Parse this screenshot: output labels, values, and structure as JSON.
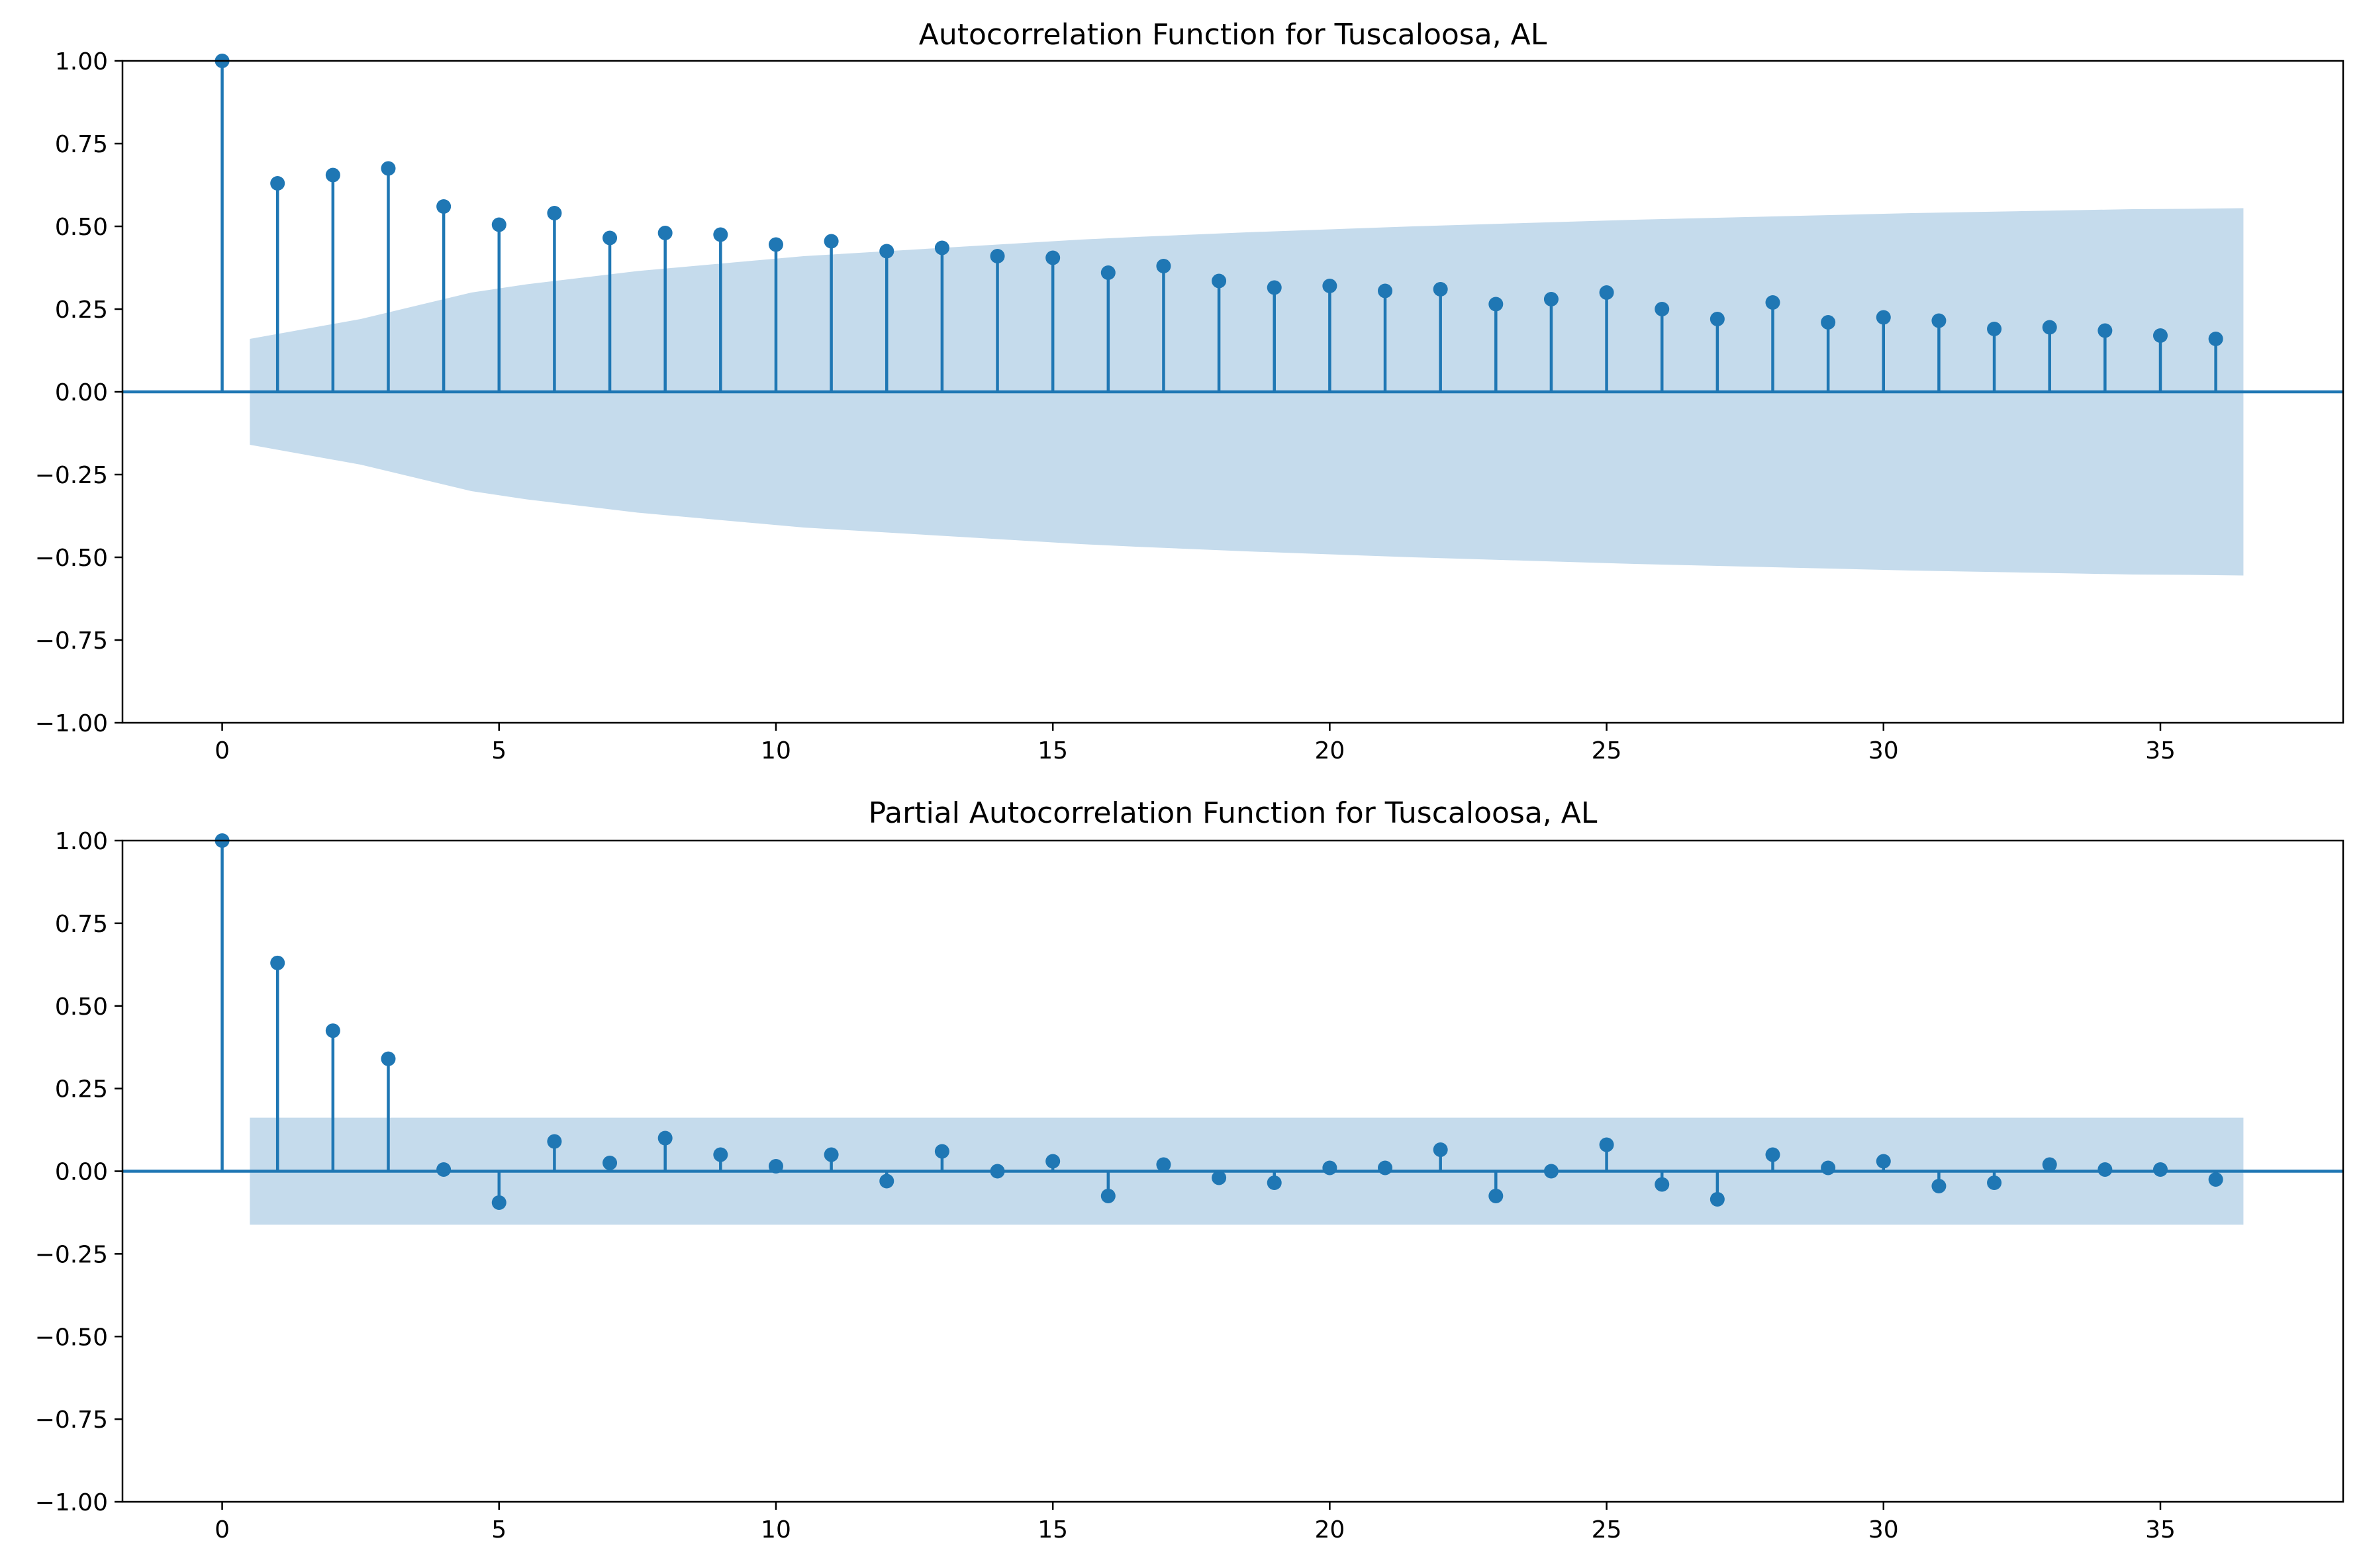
{
  "colors": {
    "stem": "#1f77b4",
    "band": "#c5dbec",
    "axis": "#000000",
    "background": "#ffffff"
  },
  "chart_data": [
    {
      "type": "stem",
      "title": "Autocorrelation Function for Tuscaloosa, AL",
      "xlabel": "",
      "ylabel": "",
      "xlim": [
        -1.8,
        38.3
      ],
      "ylim": [
        -1.0,
        1.0
      ],
      "xticks": [
        0,
        5,
        10,
        15,
        20,
        25,
        30,
        35
      ],
      "yticks": [
        1.0,
        0.75,
        0.5,
        0.25,
        0.0,
        -0.25,
        -0.5,
        -0.75,
        -1.0
      ],
      "ytick_labels": [
        "1.00",
        "0.75",
        "0.50",
        "0.25",
        "0.00",
        "−0.25",
        "−0.50",
        "−0.75",
        "−1.00"
      ],
      "grid": false,
      "lags": [
        0,
        1,
        2,
        3,
        4,
        5,
        6,
        7,
        8,
        9,
        10,
        11,
        12,
        13,
        14,
        15,
        16,
        17,
        18,
        19,
        20,
        21,
        22,
        23,
        24,
        25,
        26,
        27,
        28,
        29,
        30,
        31,
        32,
        33,
        34,
        35,
        36
      ],
      "values": [
        1.0,
        0.63,
        0.655,
        0.675,
        0.56,
        0.505,
        0.54,
        0.465,
        0.48,
        0.475,
        0.445,
        0.455,
        0.425,
        0.435,
        0.41,
        0.405,
        0.36,
        0.38,
        0.335,
        0.315,
        0.32,
        0.305,
        0.31,
        0.265,
        0.28,
        0.3,
        0.25,
        0.22,
        0.27,
        0.21,
        0.225,
        0.215,
        0.19,
        0.195,
        0.185,
        0.17,
        0.16
      ],
      "confidence_band": {
        "x": [
          0.5,
          1.5,
          2.5,
          3.5,
          4.5,
          5.5,
          6.5,
          7.5,
          8.5,
          9.5,
          10.5,
          11.5,
          12.5,
          13.5,
          14.5,
          15.5,
          16.5,
          17.5,
          18.5,
          19.5,
          20.5,
          21.5,
          22.5,
          23.5,
          24.5,
          25.5,
          26.5,
          27.5,
          28.5,
          29.5,
          30.5,
          31.5,
          32.5,
          33.5,
          34.5,
          35.5,
          36.5
        ],
        "half_width": [
          0.16,
          0.19,
          0.22,
          0.26,
          0.3,
          0.325,
          0.345,
          0.365,
          0.38,
          0.395,
          0.41,
          0.42,
          0.43,
          0.44,
          0.45,
          0.46,
          0.468,
          0.475,
          0.482,
          0.488,
          0.494,
          0.5,
          0.505,
          0.51,
          0.515,
          0.52,
          0.524,
          0.528,
          0.532,
          0.536,
          0.54,
          0.543,
          0.546,
          0.549,
          0.552,
          0.553,
          0.555
        ]
      }
    },
    {
      "type": "stem",
      "title": "Partial Autocorrelation Function for Tuscaloosa, AL",
      "xlabel": "",
      "ylabel": "",
      "xlim": [
        -1.8,
        38.3
      ],
      "ylim": [
        -1.0,
        1.0
      ],
      "xticks": [
        0,
        5,
        10,
        15,
        20,
        25,
        30,
        35
      ],
      "yticks": [
        1.0,
        0.75,
        0.5,
        0.25,
        0.0,
        -0.25,
        -0.5,
        -0.75,
        -1.0
      ],
      "ytick_labels": [
        "1.00",
        "0.75",
        "0.50",
        "0.25",
        "0.00",
        "−0.25",
        "−0.50",
        "−0.75",
        "−1.00"
      ],
      "grid": false,
      "lags": [
        0,
        1,
        2,
        3,
        4,
        5,
        6,
        7,
        8,
        9,
        10,
        11,
        12,
        13,
        14,
        15,
        16,
        17,
        18,
        19,
        20,
        21,
        22,
        23,
        24,
        25,
        26,
        27,
        28,
        29,
        30,
        31,
        32,
        33,
        34,
        35,
        36
      ],
      "values": [
        1.0,
        0.63,
        0.425,
        0.34,
        0.005,
        -0.095,
        0.09,
        0.025,
        0.1,
        0.05,
        0.015,
        0.05,
        -0.03,
        0.06,
        0.0,
        0.03,
        -0.075,
        0.02,
        -0.02,
        -0.035,
        0.01,
        0.01,
        0.065,
        -0.075,
        0.0,
        0.08,
        -0.04,
        -0.085,
        0.05,
        0.01,
        0.03,
        -0.045,
        -0.035,
        0.02,
        0.005,
        0.005,
        -0.025
      ],
      "confidence_band": {
        "x": [
          0.5,
          36.5
        ],
        "half_width": [
          0.162,
          0.162
        ]
      }
    }
  ]
}
